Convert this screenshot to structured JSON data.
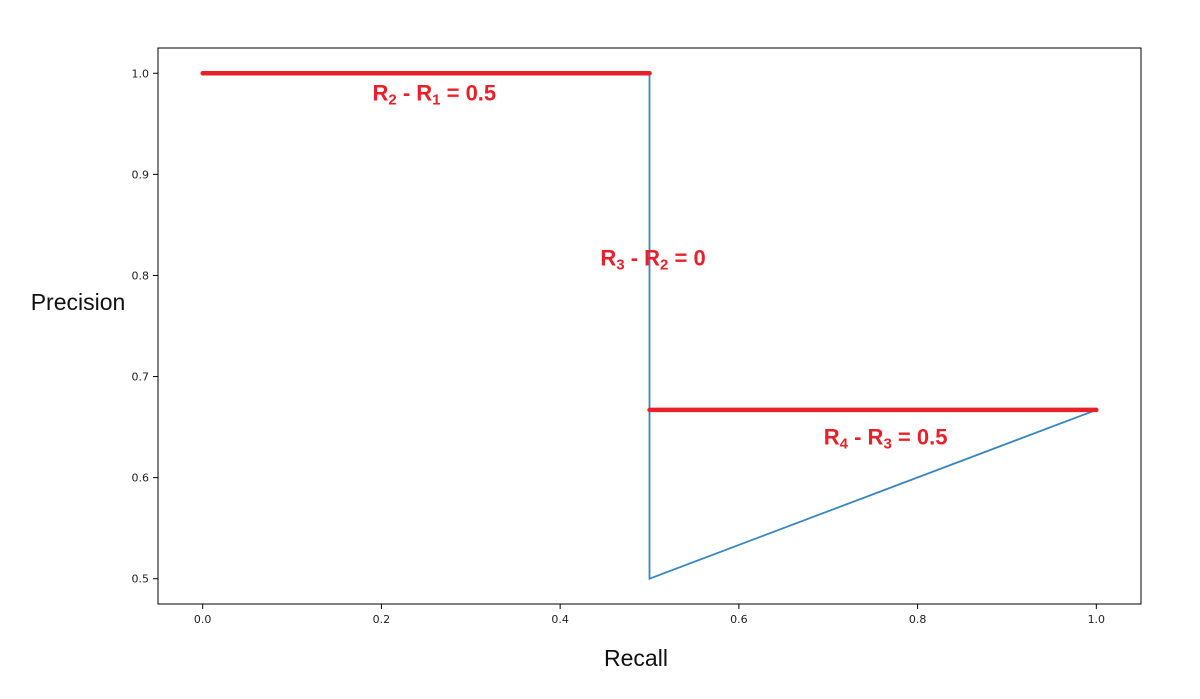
{
  "chart_data": {
    "type": "line",
    "xlabel": "Recall",
    "ylabel": "Precision",
    "xlim": [
      -0.05,
      1.05
    ],
    "ylim": [
      0.475,
      1.025
    ],
    "grid": false,
    "x_ticks": [
      0.0,
      0.2,
      0.4,
      0.6,
      0.8,
      1.0
    ],
    "x_tick_labels": [
      "0.0",
      "0.2",
      "0.4",
      "0.6",
      "0.8",
      "1.0"
    ],
    "y_ticks": [
      0.5,
      0.6,
      0.7,
      0.8,
      0.9,
      1.0
    ],
    "y_tick_labels": [
      "0.5",
      "0.6",
      "0.7",
      "0.8",
      "0.9",
      "1.0"
    ],
    "series": [
      {
        "color": "#3a87c0",
        "x": [
          0.5,
          0.5,
          1.0
        ],
        "y": [
          1.0,
          0.5,
          0.667
        ]
      }
    ],
    "highlight_segments": [
      {
        "color": "#e8202a",
        "x": [
          0.0,
          0.5
        ],
        "y": [
          1.0,
          1.0
        ]
      },
      {
        "color": "#e8202a",
        "x": [
          0.5,
          1.0
        ],
        "y": [
          0.667,
          0.667
        ]
      }
    ],
    "annotations": [
      {
        "parts": [
          "R",
          "2",
          " - R",
          "1",
          " = 0.5"
        ],
        "x": 0.19,
        "y": 0.973,
        "color": "#e8202a"
      },
      {
        "parts": [
          "R",
          "3",
          " - R",
          "2",
          " = 0"
        ],
        "x": 0.445,
        "y": 0.81,
        "color": "#e8202a"
      },
      {
        "parts": [
          "R",
          "4",
          " - R",
          "3",
          " = 0.5"
        ],
        "x": 0.695,
        "y": 0.633,
        "color": "#e8202a"
      }
    ]
  }
}
